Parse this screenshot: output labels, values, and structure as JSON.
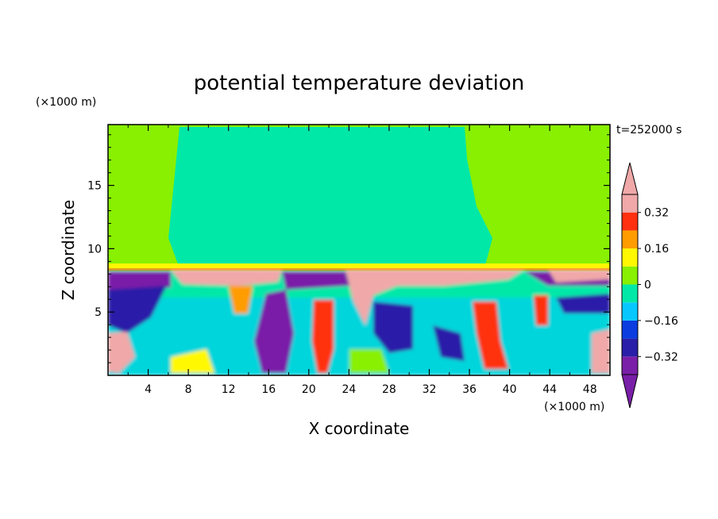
{
  "chart_data": {
    "type": "heatmap",
    "title": "potential temperature deviation",
    "xlabel": "X coordinate",
    "ylabel": "Z coordinate",
    "x_unit": "(×1000 m)",
    "y_unit": "(×1000 m)",
    "time_label": "t=252000 s",
    "xlim": [
      0,
      50
    ],
    "ylim": [
      0,
      19.8
    ],
    "x_ticks": [
      4,
      8,
      12,
      16,
      20,
      24,
      28,
      32,
      36,
      40,
      44,
      48
    ],
    "y_ticks": [
      5,
      10,
      15
    ],
    "colorbar": {
      "levels": [
        -0.4,
        -0.32,
        -0.24,
        -0.16,
        -0.08,
        0,
        0.08,
        0.16,
        0.24,
        0.32,
        0.4
      ],
      "tick_labels": [
        {
          "value": 0.32,
          "label": "0.32"
        },
        {
          "value": 0.16,
          "label": "0.16"
        },
        {
          "value": 0,
          "label": "0"
        },
        {
          "value": -0.16,
          "label": "−0.16"
        },
        {
          "value": -0.32,
          "label": "−0.32"
        }
      ],
      "colors": [
        "#7a1fa8",
        "#2a1fa8",
        "#0a3ce0",
        "#06c8ff",
        "#00e8a8",
        "#88f000",
        "#fff800",
        "#ff9c00",
        "#ff3010",
        "#f0a8a8"
      ]
    }
  }
}
